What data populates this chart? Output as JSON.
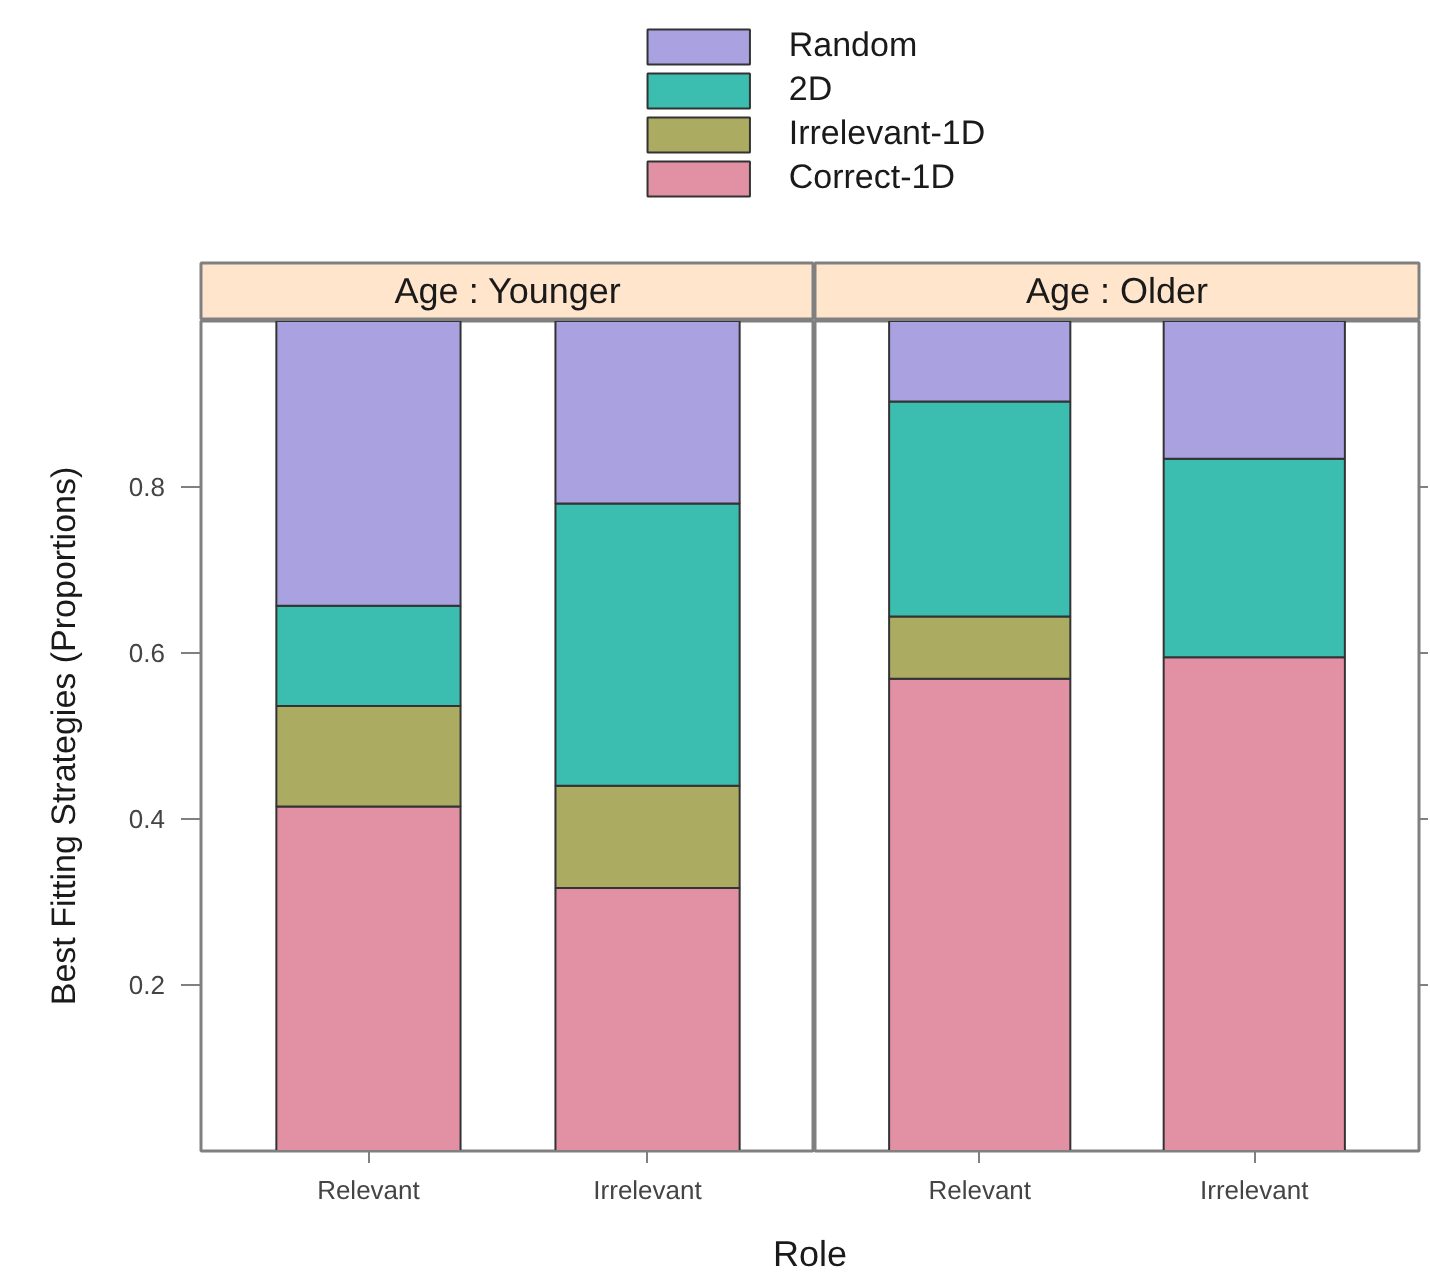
{
  "chart_data": [
    {
      "type": "bar",
      "title": "Age : Younger",
      "xlabel": "Role",
      "ylabel": "Best Fitting Strategies (Proportions)",
      "legend": "top",
      "stacked": true,
      "categories": [
        "Relevant",
        "Irrelevant"
      ],
      "series": [
        {
          "name": "Correct-1D",
          "color": "#e291a5",
          "values": [
            0.415,
            0.317
          ]
        },
        {
          "name": "Irrelevant-1D",
          "color": "#abab62",
          "values": [
            0.121,
            0.123
          ]
        },
        {
          "name": "2D",
          "color": "#3bbdb0",
          "values": [
            0.121,
            0.34
          ]
        },
        {
          "name": "Random",
          "color": "#aaa2e0",
          "values": [
            0.343,
            0.22
          ]
        }
      ],
      "ylim": [
        0,
        1
      ],
      "yticks": [
        0.2,
        0.4,
        0.6,
        0.8
      ]
    },
    {
      "type": "bar",
      "title": "Age : Older",
      "stacked": true,
      "categories": [
        "Relevant",
        "Irrelevant"
      ],
      "series": [
        {
          "color": "#e291a5",
          "values": [
            0.569,
            0.595
          ]
        },
        {
          "color": "#abab62",
          "values": [
            0.075,
            null
          ]
        },
        {
          "color": "#3bbdb0",
          "values": [
            0.259,
            0.239
          ]
        },
        {
          "color": "#aaa2e0",
          "values": [
            0.097,
            0.166
          ]
        }
      ],
      "ylim": [
        0,
        1
      ],
      "yticks": [
        0.2,
        0.4,
        0.6,
        0.8
      ],
      "tick_labels": "x"
    }
  ]
}
